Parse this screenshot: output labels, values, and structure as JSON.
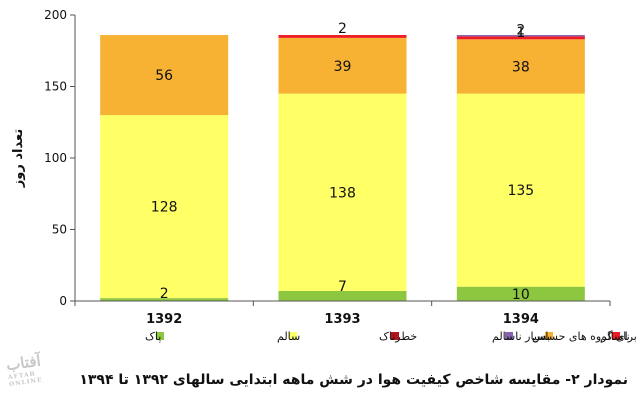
{
  "chart_data": {
    "type": "bar",
    "stacked": true,
    "categories": [
      "1392",
      "1393",
      "1394"
    ],
    "ylabel": "تعداد روز",
    "ylim": [
      0,
      200
    ],
    "yticks": [
      0,
      50,
      100,
      150,
      200
    ],
    "grid": false,
    "legend_position": "bottom",
    "series": [
      {
        "name": "پاک",
        "color": "#8dc63f",
        "values": [
          2,
          7,
          10
        ]
      },
      {
        "name": "سالم",
        "color": "#ffff66",
        "values": [
          128,
          138,
          135
        ]
      },
      {
        "name": "ناسالم برای گروه های حساس",
        "color": "#f7b234",
        "values": [
          56,
          39,
          38
        ]
      },
      {
        "name": "ناسالم",
        "color": "#ee1c25",
        "values": [
          0,
          2,
          2
        ]
      },
      {
        "name": "بسیار ناسالم",
        "color": "#8a63b0",
        "values": [
          0,
          0,
          1
        ]
      },
      {
        "name": "خطرناک",
        "color": "#b5121b",
        "values": [
          0,
          0,
          0
        ]
      }
    ],
    "data_labels": [
      {
        "category": 0,
        "series": 0,
        "text": "2"
      },
      {
        "category": 0,
        "series": 1,
        "text": "128"
      },
      {
        "category": 0,
        "series": 2,
        "text": "56"
      },
      {
        "category": 1,
        "series": 0,
        "text": "7"
      },
      {
        "category": 1,
        "series": 1,
        "text": "138"
      },
      {
        "category": 1,
        "series": 2,
        "text": "39"
      },
      {
        "category": 1,
        "series": 3,
        "text": "2"
      },
      {
        "category": 2,
        "series": 0,
        "text": "10"
      },
      {
        "category": 2,
        "series": 1,
        "text": "135"
      },
      {
        "category": 2,
        "series": 2,
        "text": "38"
      },
      {
        "category": 2,
        "series": 3,
        "text": "2"
      },
      {
        "category": 2,
        "series": 4,
        "text": "1"
      }
    ]
  },
  "caption": "نمودار ۲- مقایسه شاخص کیفیت هوا در شش ماهه ابتدایی سالهای ۱۳۹۲ تا ۱۳۹۴",
  "watermark": {
    "text": "آفتاب",
    "sub": "AFTAB ONLINE"
  }
}
